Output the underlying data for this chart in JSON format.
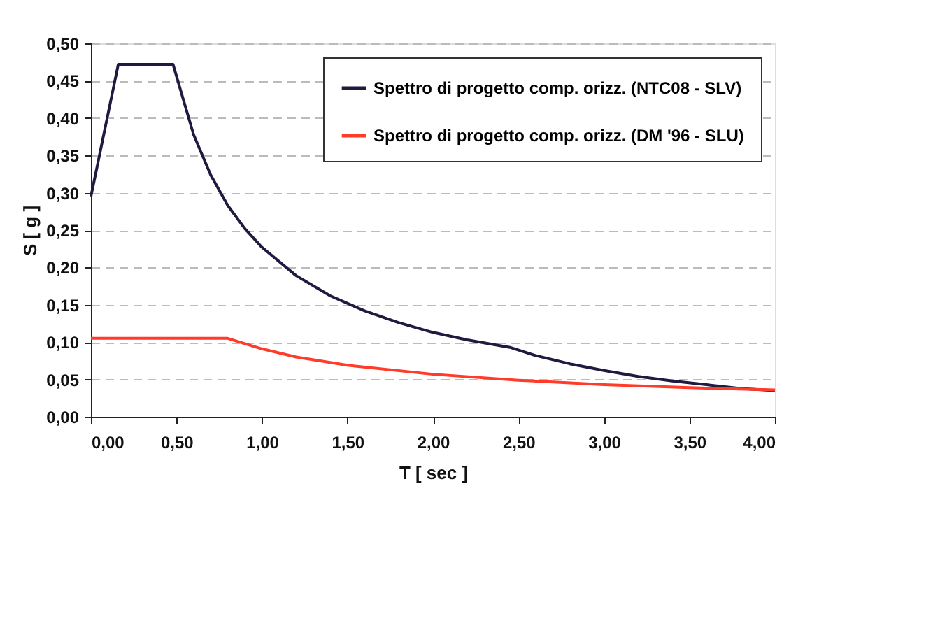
{
  "chart_data": {
    "type": "line",
    "xlabel": "T [ sec ]",
    "ylabel": "S [ g ]",
    "xlim": [
      0,
      4
    ],
    "ylim": [
      0,
      0.5
    ],
    "xticks": [
      {
        "value": 0,
        "label": "0,00"
      },
      {
        "value": 0.5,
        "label": "0,50"
      },
      {
        "value": 1,
        "label": "1,00"
      },
      {
        "value": 1.5,
        "label": "1,50"
      },
      {
        "value": 2,
        "label": "2,00"
      },
      {
        "value": 2.5,
        "label": "2,50"
      },
      {
        "value": 3,
        "label": "3,00"
      },
      {
        "value": 3.5,
        "label": "3,50"
      },
      {
        "value": 4,
        "label": "4,00"
      }
    ],
    "yticks": [
      {
        "value": 0,
        "label": "0,00"
      },
      {
        "value": 0.05,
        "label": "0,05"
      },
      {
        "value": 0.1,
        "label": "0,10"
      },
      {
        "value": 0.15,
        "label": "0,15"
      },
      {
        "value": 0.2,
        "label": "0,20"
      },
      {
        "value": 0.25,
        "label": "0,25"
      },
      {
        "value": 0.3,
        "label": "0,30"
      },
      {
        "value": 0.35,
        "label": "0,35"
      },
      {
        "value": 0.4,
        "label": "0,40"
      },
      {
        "value": 0.45,
        "label": "0,45"
      },
      {
        "value": 0.5,
        "label": "0,50"
      }
    ],
    "grid": "y",
    "legend": "top right",
    "marker": "none",
    "line_style": "solid",
    "series": [
      {
        "name": "Spettro di progetto comp. orizz. (NTC08 - SLV)",
        "color": "#1f1b40",
        "x": [
          0,
          0.16,
          0.48,
          0.6,
          0.7,
          0.8,
          0.9,
          1.0,
          1.2,
          1.4,
          1.6,
          1.8,
          2.0,
          2.2,
          2.45,
          2.6,
          2.8,
          3.0,
          3.2,
          3.4,
          3.6,
          3.8,
          4.0
        ],
        "values": [
          0.295,
          0.472,
          0.472,
          0.378,
          0.324,
          0.283,
          0.252,
          0.227,
          0.189,
          0.162,
          0.142,
          0.126,
          0.113,
          0.103,
          0.093,
          0.082,
          0.071,
          0.062,
          0.054,
          0.048,
          0.043,
          0.038,
          0.035
        ]
      },
      {
        "name": "Spettro di progetto comp. orizz. (DM '96 - SLU)",
        "color": "#ff3b2a",
        "x": [
          0,
          0.8,
          1.0,
          1.2,
          1.5,
          2.0,
          2.5,
          3.0,
          3.5,
          4.0
        ],
        "values": [
          0.105,
          0.105,
          0.091,
          0.08,
          0.069,
          0.057,
          0.049,
          0.043,
          0.039,
          0.036
        ]
      }
    ]
  }
}
